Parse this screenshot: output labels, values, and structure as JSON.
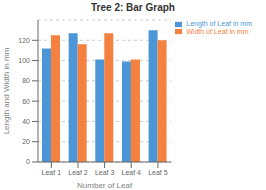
{
  "chart_data": {
    "type": "bar",
    "title": "Tree 2: Bar Graph",
    "xlabel": "Number of Leaf",
    "ylabel": "Length and Width in mm",
    "categories": [
      "Leaf 1",
      "Leaf 2",
      "Leaf 3",
      "Leaf 4",
      "Leaf 5"
    ],
    "series": [
      {
        "name": "Length of Leaf in mm",
        "values": [
          112,
          127,
          101,
          99,
          130
        ],
        "color": "#4C96D7"
      },
      {
        "name": "Width of Leaf in mm",
        "values": [
          125,
          116,
          127,
          101,
          120
        ],
        "color": "#F4813F"
      }
    ],
    "ylim": [
      0,
      140
    ],
    "yticks": [
      0,
      20,
      40,
      60,
      80,
      100,
      120
    ],
    "grid": true,
    "legend": "right"
  }
}
